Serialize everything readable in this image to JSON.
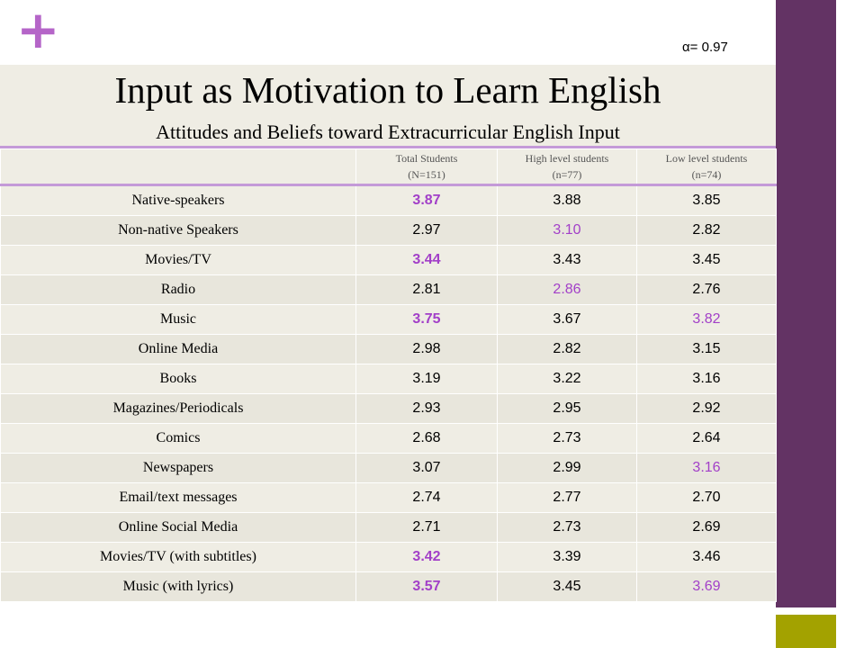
{
  "decor": {
    "plus": "+"
  },
  "alpha": "α= 0.97",
  "title": "Input as Motivation to Learn English",
  "subtitle": "Attitudes and Beliefs toward Extracurricular English Input",
  "columns": [
    {
      "line1": "Total Students",
      "line2": "(N=151)"
    },
    {
      "line1": "High level students",
      "line2": "(n=77)"
    },
    {
      "line1": "Low level students",
      "line2": "(n=74)"
    }
  ],
  "highlight_color": "#a23fc8",
  "rows": [
    {
      "label": "Native-speakers",
      "total": "3.87",
      "high": "3.88",
      "low": "3.85",
      "hl": [
        true,
        false,
        false
      ]
    },
    {
      "label": "Non-native Speakers",
      "total": "2.97",
      "high": "3.10",
      "low": "2.82",
      "hl": [
        false,
        true,
        false
      ]
    },
    {
      "label": "Movies/TV",
      "total": "3.44",
      "high": "3.43",
      "low": "3.45",
      "hl": [
        true,
        false,
        false
      ]
    },
    {
      "label": "Radio",
      "total": "2.81",
      "high": "2.86",
      "low": "2.76",
      "hl": [
        false,
        true,
        false
      ]
    },
    {
      "label": "Music",
      "total": "3.75",
      "high": "3.67",
      "low": "3.82",
      "hl": [
        true,
        false,
        true
      ]
    },
    {
      "label": "Online Media",
      "total": "2.98",
      "high": "2.82",
      "low": "3.15",
      "hl": [
        false,
        false,
        false
      ]
    },
    {
      "label": "Books",
      "total": "3.19",
      "high": "3.22",
      "low": "3.16",
      "hl": [
        false,
        false,
        false
      ]
    },
    {
      "label": "Magazines/Periodicals",
      "total": "2.93",
      "high": "2.95",
      "low": "2.92",
      "hl": [
        false,
        false,
        false
      ]
    },
    {
      "label": "Comics",
      "total": "2.68",
      "high": "2.73",
      "low": "2.64",
      "hl": [
        false,
        false,
        false
      ]
    },
    {
      "label": "Newspapers",
      "total": "3.07",
      "high": "2.99",
      "low": "3.16",
      "hl": [
        false,
        false,
        true
      ]
    },
    {
      "label": "Email/text messages",
      "total": "2.74",
      "high": "2.77",
      "low": "2.70",
      "hl": [
        false,
        false,
        false
      ]
    },
    {
      "label": "Online Social Media",
      "total": "2.71",
      "high": "2.73",
      "low": "2.69",
      "hl": [
        false,
        false,
        false
      ]
    },
    {
      "label": "Movies/TV  (with subtitles)",
      "total": "3.42",
      "high": "3.39",
      "low": "3.46",
      "hl": [
        true,
        false,
        false
      ]
    },
    {
      "label": "Music (with lyrics)",
      "total": "3.57",
      "high": "3.45",
      "low": "3.69",
      "hl": [
        true,
        false,
        true
      ]
    }
  ]
}
